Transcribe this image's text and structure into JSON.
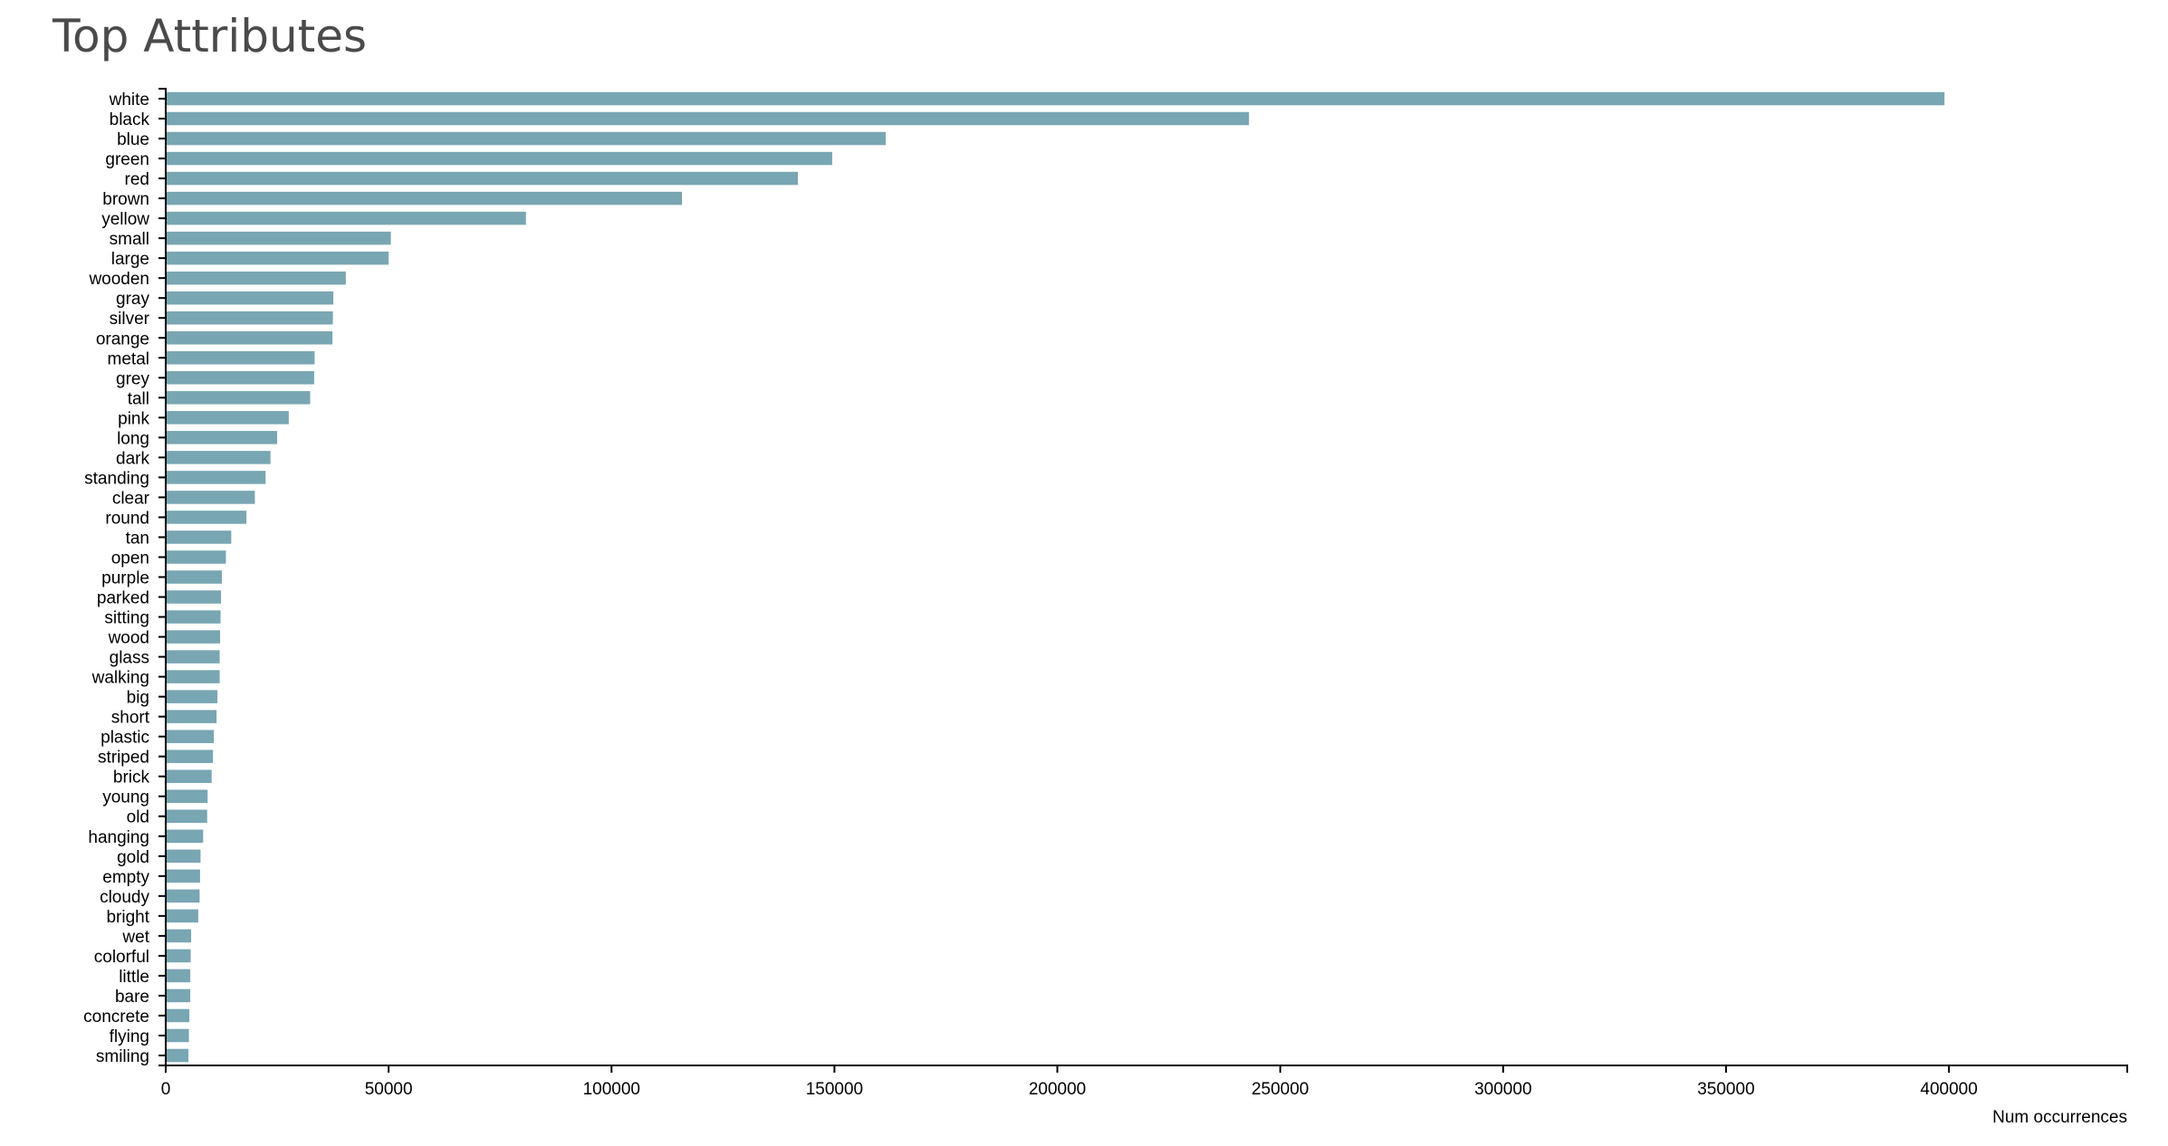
{
  "page": {
    "title": "Top Attributes"
  },
  "chart_data": {
    "type": "bar",
    "orientation": "horizontal",
    "title": "Top Attributes",
    "xlabel": "Num occurrences",
    "ylabel": "",
    "xlim": [
      0,
      440000
    ],
    "xticks": [
      0,
      50000,
      100000,
      150000,
      200000,
      250000,
      300000,
      350000,
      400000
    ],
    "grid": false,
    "bar_color": "#78a6b2",
    "categories": [
      "white",
      "black",
      "blue",
      "green",
      "red",
      "brown",
      "yellow",
      "small",
      "large",
      "wooden",
      "gray",
      "silver",
      "orange",
      "metal",
      "grey",
      "tall",
      "pink",
      "long",
      "dark",
      "standing",
      "clear",
      "round",
      "tan",
      "open",
      "purple",
      "parked",
      "sitting",
      "wood",
      "glass",
      "walking",
      "big",
      "short",
      "plastic",
      "striped",
      "brick",
      "young",
      "old",
      "hanging",
      "gold",
      "empty",
      "cloudy",
      "bright",
      "wet",
      "colorful",
      "little",
      "bare",
      "concrete",
      "flying",
      "smiling"
    ],
    "values": [
      399000,
      243000,
      161500,
      149500,
      141800,
      115800,
      80800,
      50500,
      50000,
      40400,
      37600,
      37500,
      37400,
      33400,
      33300,
      32400,
      27600,
      25000,
      23500,
      22400,
      20000,
      18100,
      14700,
      13500,
      12600,
      12400,
      12300,
      12200,
      12100,
      12100,
      11600,
      11400,
      10800,
      10600,
      10300,
      9400,
      9300,
      8400,
      7800,
      7700,
      7600,
      7300,
      5700,
      5600,
      5500,
      5500,
      5300,
      5200,
      5100
    ]
  }
}
